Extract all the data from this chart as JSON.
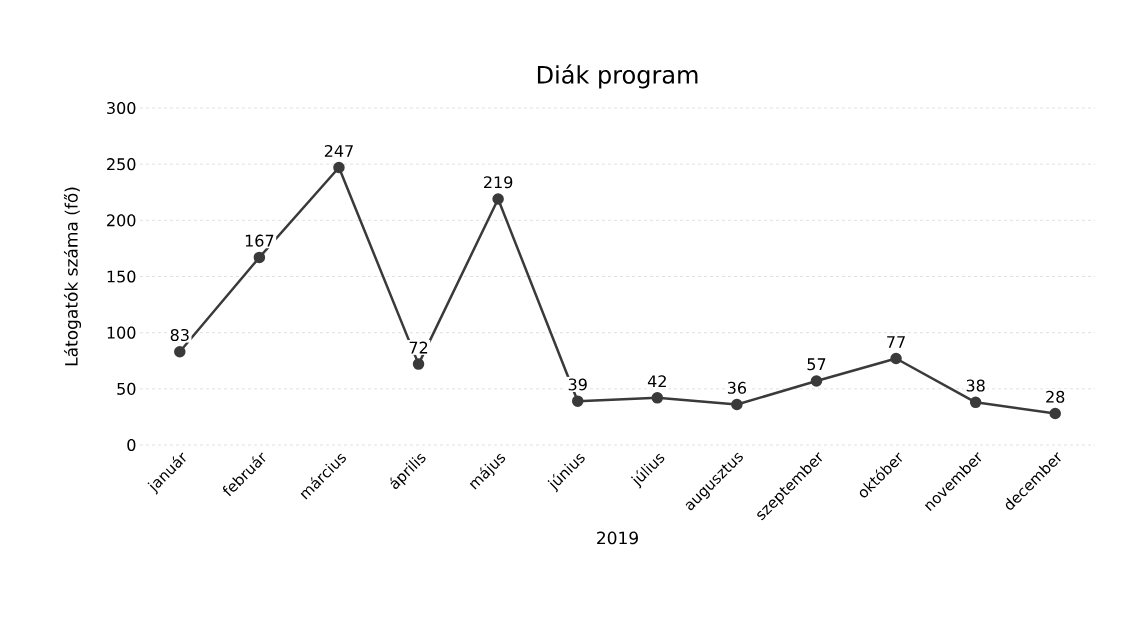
{
  "chart_data": {
    "type": "line",
    "title": "Diák program",
    "xlabel": "2019",
    "ylabel": "Látogatók száma (fő)",
    "categories": [
      "január",
      "február",
      "március",
      "április",
      "május",
      "június",
      "július",
      "augusztus",
      "szeptember",
      "október",
      "november",
      "december"
    ],
    "values": [
      83,
      167,
      247,
      72,
      219,
      39,
      42,
      36,
      57,
      77,
      38,
      28
    ],
    "color": "#3a3a3a",
    "ylim": [
      0,
      300
    ],
    "yticks": [
      0,
      50,
      100,
      150,
      200,
      250,
      300
    ],
    "grid": "y",
    "marker": "circle",
    "line_style": "solid",
    "data_labels": true
  }
}
